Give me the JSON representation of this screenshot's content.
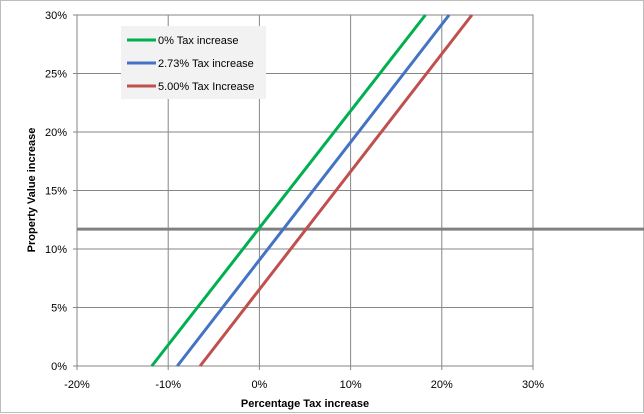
{
  "chart_data": {
    "type": "line",
    "xlabel": "Percentage Tax increase",
    "ylabel": "Property Value increase",
    "xlim": [
      -20,
      30
    ],
    "ylim": [
      0,
      30
    ],
    "x_ticks": [
      "-20%",
      "-10%",
      "0%",
      "10%",
      "20%",
      "30%"
    ],
    "y_ticks": [
      "0%",
      "5%",
      "10%",
      "15%",
      "20%",
      "25%",
      "30%"
    ],
    "grid": true,
    "legend_position": "top-left",
    "series": [
      {
        "name": "0% Tax increase",
        "color": "#00b050",
        "x": [
          -11.8,
          18.2
        ],
        "y": [
          0,
          30
        ]
      },
      {
        "name": "2.73% Tax increase",
        "color": "#4472c4",
        "x": [
          -9.0,
          20.8
        ],
        "y": [
          0,
          30
        ]
      },
      {
        "name": "5.00% Tax Increase",
        "color": "#c0504d",
        "x": [
          -6.5,
          23.3
        ],
        "y": [
          0,
          30
        ]
      }
    ],
    "reference_line": {
      "y": 11.7,
      "color": "#808080"
    }
  }
}
